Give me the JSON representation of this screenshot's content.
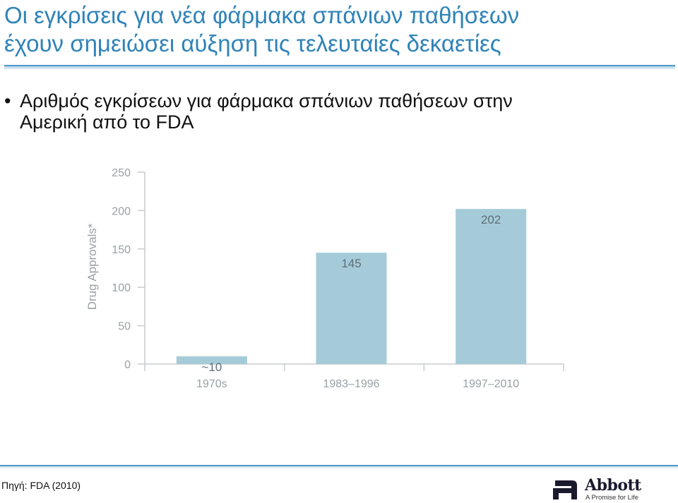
{
  "slide": {
    "title_lines": [
      "Οι εγκρίσεις για νέα φάρμακα σπάνιων παθήσεων",
      "έχουν σημειώσει αύξηση τις τελευταίες δεκαετίες"
    ],
    "bullet_symbol": "•",
    "bullet_lines": [
      "Αριθμός εγκρίσεων για φάρμακα σπάνιων παθήσεων στην",
      "Αμερική από το FDA"
    ],
    "source": "Πηγή: FDA (2010)",
    "logo": {
      "name": "Abbott",
      "tagline": "A Promise for Life"
    },
    "colors": {
      "title": "#2f83b8",
      "rule": "#4d98c6"
    }
  },
  "chart_data": {
    "type": "bar",
    "categories": [
      "1970s",
      "1983–1996",
      "1997–2010"
    ],
    "values": [
      10,
      145,
      202
    ],
    "data_labels": [
      "~10",
      "145",
      "202"
    ],
    "ylabel": "Drug Approvals*",
    "xlabel": "",
    "ylim": [
      0,
      250
    ],
    "yticks": [
      0,
      50,
      100,
      150,
      200,
      250
    ],
    "grid": false,
    "legend": "none",
    "colors": {
      "bar": "#a5cbd8",
      "axis_text": "#9aa0a3",
      "axis_line": "#c8cbcd",
      "bar_label": "#5f6e78"
    }
  }
}
